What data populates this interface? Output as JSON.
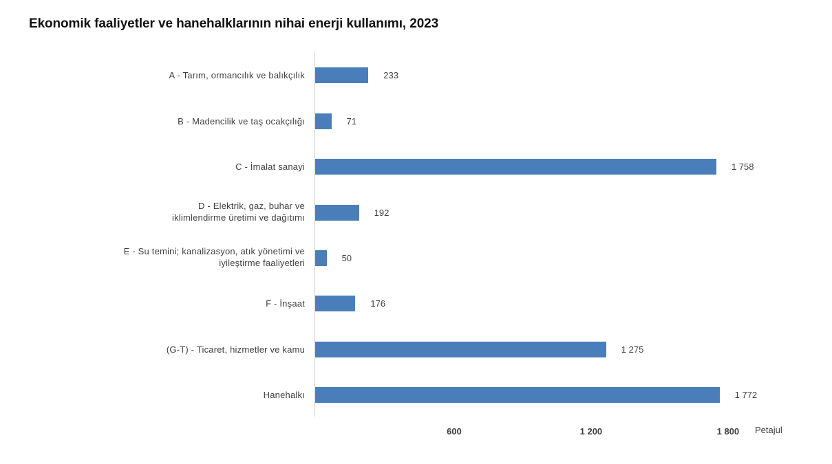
{
  "chart_data": {
    "type": "bar",
    "orientation": "horizontal",
    "title": "Ekonomik faaliyetler ve hanehalklarının nihai enerji kullanımı, 2023",
    "xlabel": "Petajul",
    "ylabel": "",
    "categories": [
      "A - Tarım, ormancılık ve balıkçılık",
      "B - Madencilik ve taş ocakçılığı",
      "C - İmalat sanayi",
      "D - Elektrik, gaz, buhar ve iklimlendirme üretimi ve dağıtımı",
      "E - Su temini; kanalizasyon, atık yönetimi ve iyileştirme faaliyetleri",
      "F - İnşaat",
      "(G-T) - Ticaret, hizmetler ve kamu",
      "Hanehalkı"
    ],
    "values": [
      233,
      71,
      1758,
      192,
      50,
      176,
      1275,
      1772
    ],
    "value_labels": [
      "233",
      "71",
      "1 758",
      "192",
      "50",
      "176",
      "1 275",
      "1 772"
    ],
    "xlim": [
      0,
      1800
    ],
    "x_ticks": [
      600,
      1200,
      1800
    ],
    "x_tick_labels": [
      "600",
      "1 200",
      "1 800"
    ],
    "grid": false,
    "legend": null,
    "bar_color": "#4a7ebb"
  },
  "title": "Ekonomik faaliyetler ve hanehalklarının nihai enerji kullanımı, 2023",
  "rows": [
    {
      "line1": "A - Tarım, ormancılık ve balıkçılık",
      "line2": "",
      "value": "233"
    },
    {
      "line1": "B - Madencilik ve taş ocakçılığı",
      "line2": "",
      "value": "71"
    },
    {
      "line1": "C - İmalat sanayi",
      "line2": "",
      "value": "1 758"
    },
    {
      "line1": "D - Elektrik, gaz, buhar ve",
      "line2": "iklimlendirme üretimi ve dağıtımı",
      "value": "192"
    },
    {
      "line1": "E - Su temini; kanalizasyon, atık yönetimi ve",
      "line2": "iyileştirme faaliyetleri",
      "value": "50"
    },
    {
      "line1": "F - İnşaat",
      "line2": "",
      "value": "176"
    },
    {
      "line1": "(G-T) - Ticaret, hizmetler ve kamu",
      "line2": "",
      "value": "1 275"
    },
    {
      "line1": "Hanehalkı",
      "line2": "",
      "value": "1 772"
    }
  ],
  "axis": {
    "ticks": [
      "600",
      "1 200",
      "1 800"
    ],
    "unit": "Petajul"
  }
}
